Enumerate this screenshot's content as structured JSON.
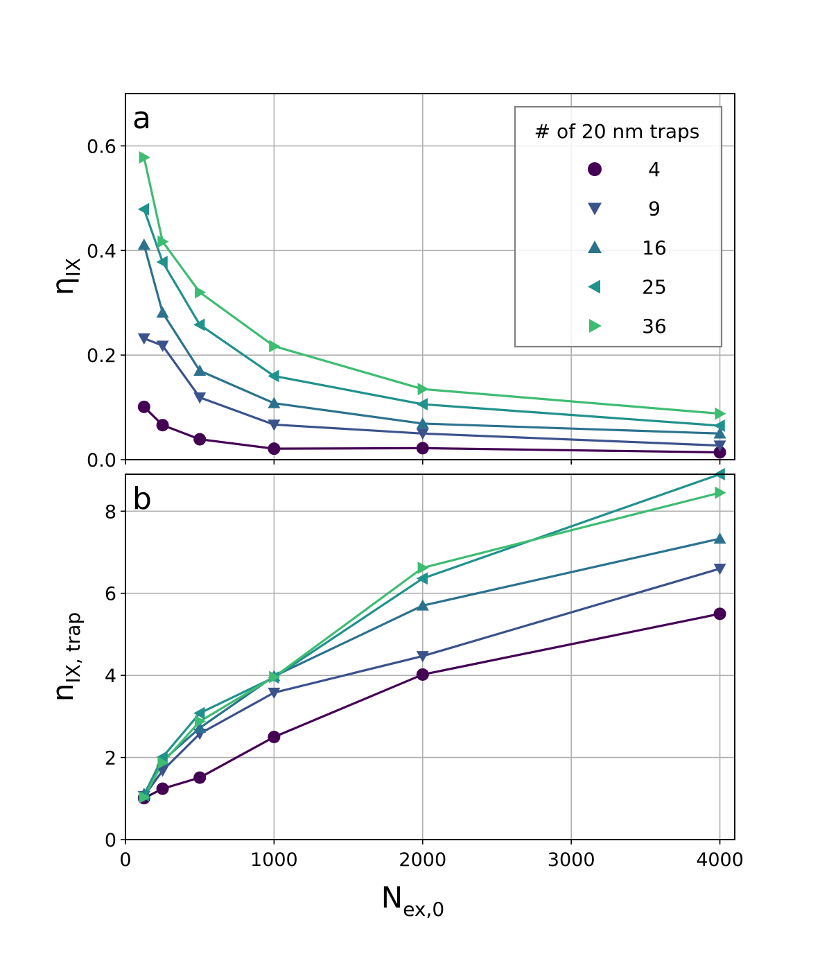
{
  "chart_data": [
    {
      "panel": "a",
      "type": "line",
      "x": [
        125,
        250,
        500,
        1000,
        2000,
        4000
      ],
      "xlim": [
        0,
        4100
      ],
      "ylim": [
        0,
        0.7
      ],
      "xticks": [],
      "yticks": [
        "0.0",
        "0.2",
        "0.4",
        "0.6"
      ],
      "ylabel": {
        "main": "η",
        "sub": "IX"
      },
      "grid": true,
      "legend": {
        "title": "# of 20 nm traps",
        "placement": "top-right"
      },
      "series": [
        {
          "name": "4",
          "marker": "circle",
          "color": "#440154",
          "values": [
            0.101,
            0.066,
            0.039,
            0.021,
            0.022,
            0.014
          ]
        },
        {
          "name": "9",
          "marker": "triangle-down",
          "color": "#3b528b",
          "values": [
            0.232,
            0.218,
            0.119,
            0.067,
            0.05,
            0.027
          ]
        },
        {
          "name": "16",
          "marker": "triangle-up",
          "color": "#2c728e",
          "values": [
            0.411,
            0.281,
            0.17,
            0.108,
            0.069,
            0.05
          ]
        },
        {
          "name": "25",
          "marker": "triangle-left",
          "color": "#21918c",
          "values": [
            0.479,
            0.378,
            0.258,
            0.16,
            0.106,
            0.065
          ]
        },
        {
          "name": "36",
          "marker": "triangle-right",
          "color": "#3fbc73",
          "values": [
            0.578,
            0.417,
            0.32,
            0.217,
            0.135,
            0.088
          ]
        }
      ]
    },
    {
      "panel": "b",
      "type": "line",
      "x": [
        125,
        250,
        500,
        1000,
        2000,
        4000
      ],
      "xlim": [
        0,
        4100
      ],
      "ylim": [
        0,
        8.9
      ],
      "xticks": [
        "0",
        "1000",
        "2000",
        "3000",
        "4000"
      ],
      "yticks": [
        "0",
        "2",
        "4",
        "6",
        "8"
      ],
      "xlabel": {
        "main": "N",
        "sub": "ex,0"
      },
      "ylabel": {
        "main": "n",
        "sub": "IX, trap"
      },
      "grid": true,
      "series": [
        {
          "name": "4",
          "marker": "circle",
          "color": "#440154",
          "values": [
            1.01,
            1.24,
            1.51,
            2.5,
            4.02,
            5.5
          ]
        },
        {
          "name": "9",
          "marker": "triangle-down",
          "color": "#3b528b",
          "values": [
            1.06,
            1.68,
            2.58,
            3.58,
            4.47,
            6.6
          ]
        },
        {
          "name": "16",
          "marker": "triangle-up",
          "color": "#2c728e",
          "values": [
            1.11,
            1.92,
            2.72,
            3.98,
            5.7,
            7.33
          ]
        },
        {
          "name": "25",
          "marker": "triangle-left",
          "color": "#21918c",
          "values": [
            1.08,
            2.01,
            3.08,
            3.95,
            6.36,
            8.9
          ]
        },
        {
          "name": "36",
          "marker": "triangle-right",
          "color": "#3fbc73",
          "values": [
            1.03,
            1.87,
            2.88,
            3.96,
            6.62,
            8.45
          ]
        }
      ]
    }
  ]
}
